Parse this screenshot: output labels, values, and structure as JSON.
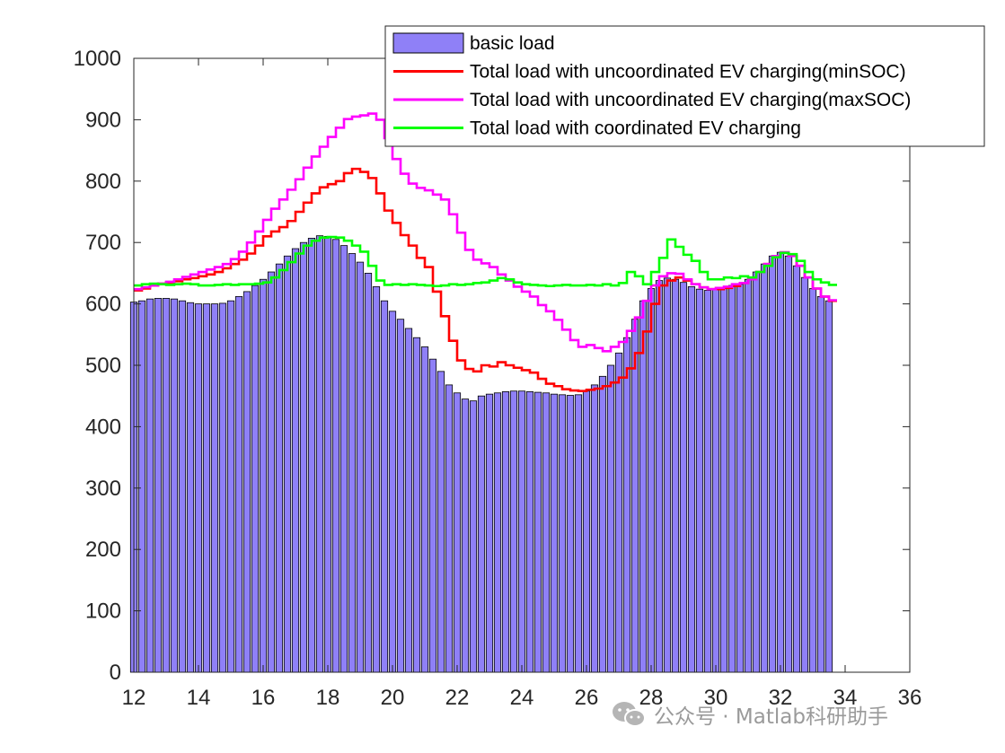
{
  "chart_data": {
    "type": "bar",
    "title": "",
    "xlabel": "",
    "ylabel": "",
    "xlim": [
      12,
      36
    ],
    "ylim": [
      0,
      1000
    ],
    "grid": false,
    "legend_position": "top-right",
    "x_ticks": [
      12,
      14,
      16,
      18,
      20,
      22,
      24,
      26,
      28,
      30,
      32,
      34,
      36
    ],
    "y_ticks": [
      0,
      100,
      200,
      300,
      400,
      500,
      600,
      700,
      800,
      900,
      1000
    ],
    "x_start": 12,
    "x_step": 0.25,
    "series": [
      {
        "name": "basic load",
        "kind": "bar",
        "color": "#8F80F7",
        "edge_color": "#000000",
        "values": [
          603,
          605,
          608,
          609,
          609,
          608,
          605,
          602,
          600,
          600,
          600,
          601,
          605,
          612,
          620,
          630,
          640,
          652,
          665,
          678,
          690,
          700,
          707,
          711,
          710,
          705,
          695,
          682,
          668,
          650,
          628,
          605,
          588,
          575,
          560,
          545,
          530,
          510,
          490,
          468,
          455,
          445,
          442,
          450,
          453,
          455,
          457,
          458,
          458,
          457,
          456,
          455,
          453,
          452,
          451,
          452,
          458,
          468,
          482,
          500,
          520,
          545,
          575,
          605,
          625,
          638,
          642,
          640,
          635,
          628,
          624,
          622,
          624,
          626,
          630,
          632,
          640,
          652,
          665,
          678,
          684,
          678,
          662,
          643,
          625,
          612,
          605
        ]
      },
      {
        "name": "Total load with uncoordinated EV charging(minSOC)",
        "kind": "stairs",
        "color": "#FF0000",
        "values": [
          622,
          625,
          630,
          633,
          635,
          637,
          640,
          642,
          645,
          648,
          652,
          658,
          665,
          672,
          682,
          695,
          710,
          718,
          725,
          735,
          750,
          765,
          780,
          790,
          795,
          800,
          813,
          820,
          815,
          805,
          780,
          752,
          732,
          712,
          695,
          675,
          660,
          620,
          580,
          540,
          508,
          494,
          490,
          500,
          498,
          505,
          500,
          496,
          492,
          488,
          478,
          470,
          466,
          461,
          459,
          458,
          460,
          462,
          466,
          472,
          480,
          495,
          520,
          555,
          600,
          630,
          638,
          643,
          638,
          632,
          627,
          624,
          624,
          626,
          629,
          634,
          640,
          652,
          665,
          678,
          684,
          678,
          662,
          643,
          625,
          612,
          605
        ]
      },
      {
        "name": "Total load with uncoordinated EV charging(maxSOC)",
        "kind": "stairs",
        "color": "#FF00FF",
        "values": [
          624,
          627,
          630,
          633,
          636,
          640,
          644,
          648,
          652,
          656,
          660,
          665,
          673,
          685,
          700,
          718,
          737,
          755,
          770,
          786,
          803,
          822,
          840,
          856,
          872,
          887,
          901,
          905,
          907,
          910,
          900,
          870,
          836,
          812,
          796,
          789,
          785,
          778,
          770,
          746,
          716,
          688,
          672,
          666,
          660,
          648,
          638,
          628,
          620,
          612,
          598,
          588,
          574,
          558,
          541,
          530,
          533,
          528,
          523,
          530,
          538,
          556,
          578,
          605,
          630,
          645,
          650,
          649,
          640,
          632,
          627,
          624,
          626,
          628,
          632,
          634,
          640,
          652,
          665,
          678,
          684,
          678,
          662,
          643,
          625,
          612,
          606
        ]
      },
      {
        "name": "Total load with coordinated EV charging",
        "kind": "stairs",
        "color": "#00FF00",
        "values": [
          630,
          632,
          633,
          632,
          631,
          632,
          633,
          632,
          630,
          630,
          631,
          632,
          631,
          632,
          632,
          633,
          635,
          643,
          655,
          668,
          682,
          695,
          703,
          708,
          709,
          708,
          703,
          695,
          685,
          662,
          638,
          631,
          632,
          631,
          632,
          631,
          630,
          629,
          630,
          632,
          631,
          632,
          634,
          635,
          638,
          642,
          640,
          635,
          632,
          631,
          630,
          629,
          630,
          631,
          630,
          630,
          631,
          630,
          632,
          630,
          634,
          652,
          645,
          632,
          652,
          675,
          705,
          693,
          680,
          670,
          652,
          640,
          640,
          643,
          642,
          645,
          643,
          652,
          662,
          676,
          683,
          681,
          670,
          652,
          640,
          635,
          631
        ]
      }
    ]
  },
  "watermark": {
    "text": "公众号 · Matlab科研助手",
    "icon": "wechat-icon"
  }
}
